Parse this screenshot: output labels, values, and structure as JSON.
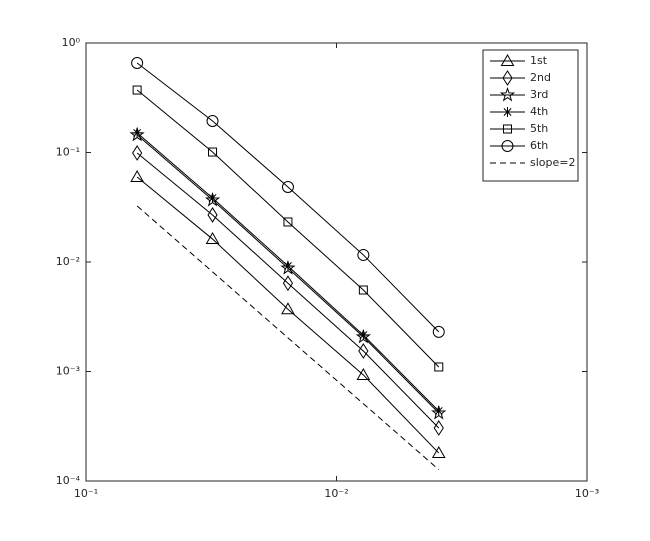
{
  "chart_data": {
    "type": "line",
    "x": [
      0.0625,
      0.03125,
      0.015625,
      0.0078125,
      0.00390625
    ],
    "xscale": "log",
    "yscale": "log",
    "xlim": [
      0.1,
      0.001
    ],
    "xticks": [
      {
        "value": 0.1,
        "label": "10⁻¹"
      },
      {
        "value": 0.01,
        "label": "10⁻²"
      },
      {
        "value": 0.001,
        "label": "10⁻³"
      }
    ],
    "ylim": [
      0.0001,
      1
    ],
    "yticks": [
      {
        "value": 0.0001,
        "label": "10⁻⁴"
      },
      {
        "value": 0.001,
        "label": "10⁻³"
      },
      {
        "value": 0.01,
        "label": "10⁻²"
      },
      {
        "value": 0.1,
        "label": "10⁻¹"
      },
      {
        "value": 1,
        "label": "10⁰"
      }
    ],
    "legend": "upper right",
    "series": [
      {
        "name": "1st",
        "color": "#000000",
        "marker": "triangle",
        "dashed": false,
        "values": [
          0.0597,
          0.0162,
          0.0037,
          0.00093,
          0.00018
        ]
      },
      {
        "name": "2nd",
        "color": "#000000",
        "marker": "diamond",
        "dashed": false,
        "values": [
          0.099,
          0.0269,
          0.0064,
          0.00154,
          0.000305
        ]
      },
      {
        "name": "3rd",
        "color": "#000000",
        "marker": "pentagram",
        "dashed": false,
        "values": [
          0.145,
          0.0368,
          0.0088,
          0.00207,
          0.000418
        ]
      },
      {
        "name": "4th",
        "color": "#000000",
        "marker": "asterisk",
        "dashed": false,
        "values": [
          0.151,
          0.0384,
          0.0092,
          0.00215,
          0.000436
        ]
      },
      {
        "name": "5th",
        "color": "#000000",
        "marker": "square",
        "dashed": false,
        "values": [
          0.372,
          0.101,
          0.0232,
          0.00555,
          0.0011
        ]
      },
      {
        "name": "6th",
        "color": "#000000",
        "marker": "circle",
        "dashed": false,
        "values": [
          0.657,
          0.194,
          0.0484,
          0.0116,
          0.0023
        ]
      },
      {
        "name": "slope=2",
        "color": "#000000",
        "marker": "none",
        "dashed": true,
        "values": [
          0.0325,
          0.008125,
          0.00203,
          0.000508,
          0.000127
        ]
      }
    ]
  }
}
